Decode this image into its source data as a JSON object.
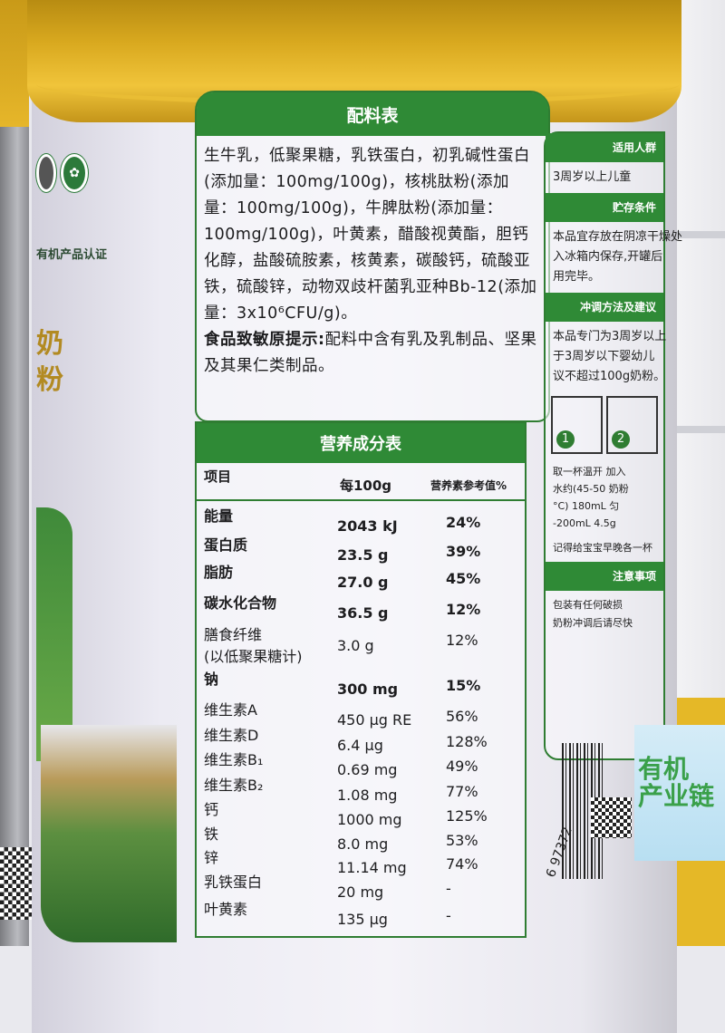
{
  "ingredients_panel": {
    "title": "配料表",
    "text": "生牛乳，低聚果糖，乳铁蛋白，初乳碱性蛋白(添加量：100mg/100g)，核桃肽粉(添加量：100mg/100g)，牛脾肽粉(添加量：100mg/100g)，叶黄素，醋酸视黄酯，胆钙化醇，盐酸硫胺素，核黄素，碳酸钙，硫酸亚铁，硫酸锌，动物双歧杆菌乳亚种Bb-12(添加量：3x10⁶CFU/g)。",
    "allergen_label": "食品致敏原提示:",
    "allergen_text": "配料中含有乳及乳制品、坚果及其果仁类制品。"
  },
  "nutrition_panel": {
    "title": "营养成分表",
    "headers": [
      "项目",
      "每100g",
      "营养素参考值%"
    ],
    "rows": [
      {
        "name": "能量",
        "value": "2043 kJ",
        "nrv": "24%"
      },
      {
        "name": "蛋白质",
        "value": "23.5 g",
        "nrv": "39%"
      },
      {
        "name": "脂肪",
        "value": "27.0 g",
        "nrv": "45%"
      },
      {
        "name": "碳水化合物",
        "value": "36.5 g",
        "nrv": "12%"
      },
      {
        "name": "膳食纤维\n(以低聚果糖计)",
        "value": "3.0 g",
        "nrv": "12%"
      },
      {
        "name": "钠",
        "value": "300 mg",
        "nrv": "15%"
      },
      {
        "name": "维生素A",
        "value": "450 μg RE",
        "nrv": "56%"
      },
      {
        "name": "维生素D",
        "value": "6.4 μg",
        "nrv": "128%"
      },
      {
        "name": "维生素B₁",
        "value": "0.69 mg",
        "nrv": "49%"
      },
      {
        "name": "维生素B₂",
        "value": "1.08 mg",
        "nrv": "77%"
      },
      {
        "name": "钙",
        "value": "1000 mg",
        "nrv": "125%"
      },
      {
        "name": "铁",
        "value": "8.0 mg",
        "nrv": "53%"
      },
      {
        "name": "锌",
        "value": "11.14 mg",
        "nrv": "74%"
      },
      {
        "name": "乳铁蛋白",
        "value": "20 mg",
        "nrv": "-"
      },
      {
        "name": "叶黄素",
        "value": "135 μg",
        "nrv": "-"
      }
    ]
  },
  "side_panel": {
    "suitable_title": "适用人群",
    "suitable_text": "3周岁以上儿童",
    "storage_title": "贮存条件",
    "storage_lines": [
      "本品宜存放在阴凉干燥处",
      "入冰箱内保存,开罐后",
      "用完毕。"
    ],
    "prep_title": "冲调方法及建议",
    "prep_lines": [
      "本品专门为3周岁以上",
      "于3周岁以下婴幼儿",
      "议不超过100g奶粉。"
    ],
    "step_numbers": [
      "1",
      "2"
    ],
    "step_lines": [
      "取一杯温开 加入",
      "水约(45-50 奶粉",
      "°C) 180mL 匀",
      "-200mL 4.5g"
    ],
    "reminder": "记得给宝宝早晚各一杯",
    "note_title": "注意事项",
    "note_lines": [
      "包装有任何破损",
      "奶粉冲调后请尽快"
    ]
  },
  "cert": {
    "text": "有机产品认证"
  },
  "brand_vertical": "奶粉",
  "barcode_number": "6 97372",
  "background_can_text": "有机\n产业链",
  "colors": {
    "label_green": "#2f8a36",
    "lid_gold": "#e0b02a",
    "can_white": "#f0eff5"
  }
}
